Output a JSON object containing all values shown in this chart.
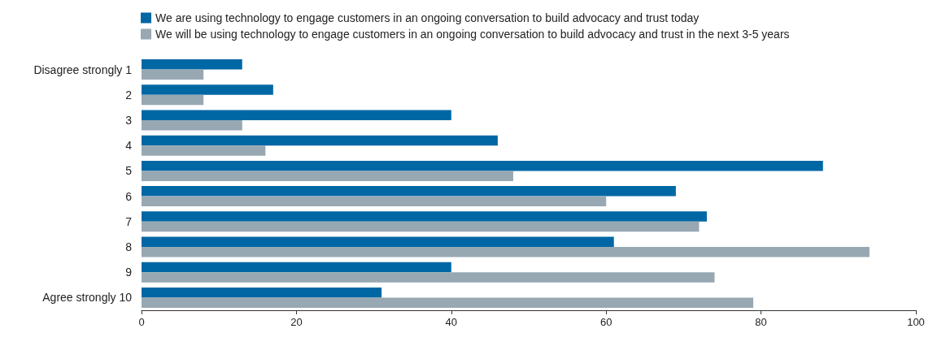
{
  "chart_data": {
    "type": "bar",
    "orientation": "horizontal",
    "categories": [
      "Disagree strongly 1",
      "2",
      "3",
      "4",
      "5",
      "6",
      "7",
      "8",
      "9",
      "Agree strongly 10"
    ],
    "series": [
      {
        "name": "We are using technology to engage customers in an ongoing conversation to build advocacy and trust today",
        "color": "#0067a5",
        "values": [
          13,
          17,
          40,
          46,
          88,
          69,
          73,
          61,
          40,
          31
        ]
      },
      {
        "name": "We will be using technology to engage customers in an ongoing conversation to build advocacy and trust in the next 3-5 years",
        "color": "#98a8b2",
        "values": [
          8,
          8,
          13,
          16,
          48,
          60,
          72,
          94,
          74,
          79
        ]
      }
    ],
    "xlim": [
      0,
      100
    ],
    "xticks": [
      0,
      20,
      40,
      60,
      80,
      100
    ],
    "grid": false,
    "legend": "top left"
  }
}
